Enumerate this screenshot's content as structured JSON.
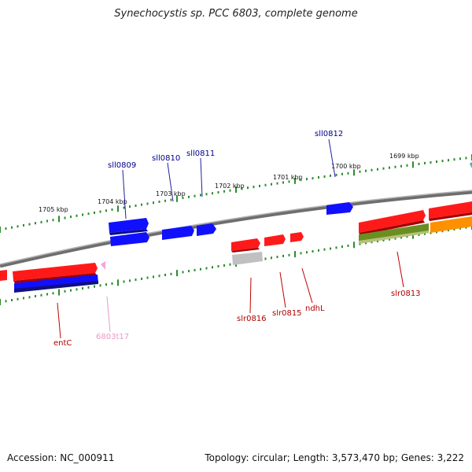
{
  "title": "Synechocystis sp. PCC 6803, complete genome",
  "footer": {
    "accession": "Accession: NC_000911",
    "summary": "Topology: circular; Length: 3,573,470 bp; Genes: 3,222"
  },
  "scale_labels": [
    "1705 kbp",
    "1704 kbp",
    "1703 kbp",
    "1702 kbp",
    "1701 kbp",
    "1700 kbp",
    "1699 kbp"
  ],
  "gene_labels": {
    "top": [
      "sll0809",
      "sll0810",
      "sll0811",
      "sll0812"
    ],
    "bottom": [
      "entC",
      "6803t17",
      "slr0816",
      "slr0815",
      "ndhL",
      "slr0813"
    ]
  },
  "colors": {
    "backbone": "#808080",
    "tick": "#2e8b2e",
    "top_label": "#00008b",
    "bottom_label": "#b00000",
    "trna_label": "#e89ac8",
    "red": "#ff1a1a",
    "blue": "#1010ff",
    "navy": "#101080",
    "gray": "#c0c0c0",
    "olive": "#6b8e23",
    "orange": "#ff9000",
    "pink": "#f4a6d7"
  }
}
